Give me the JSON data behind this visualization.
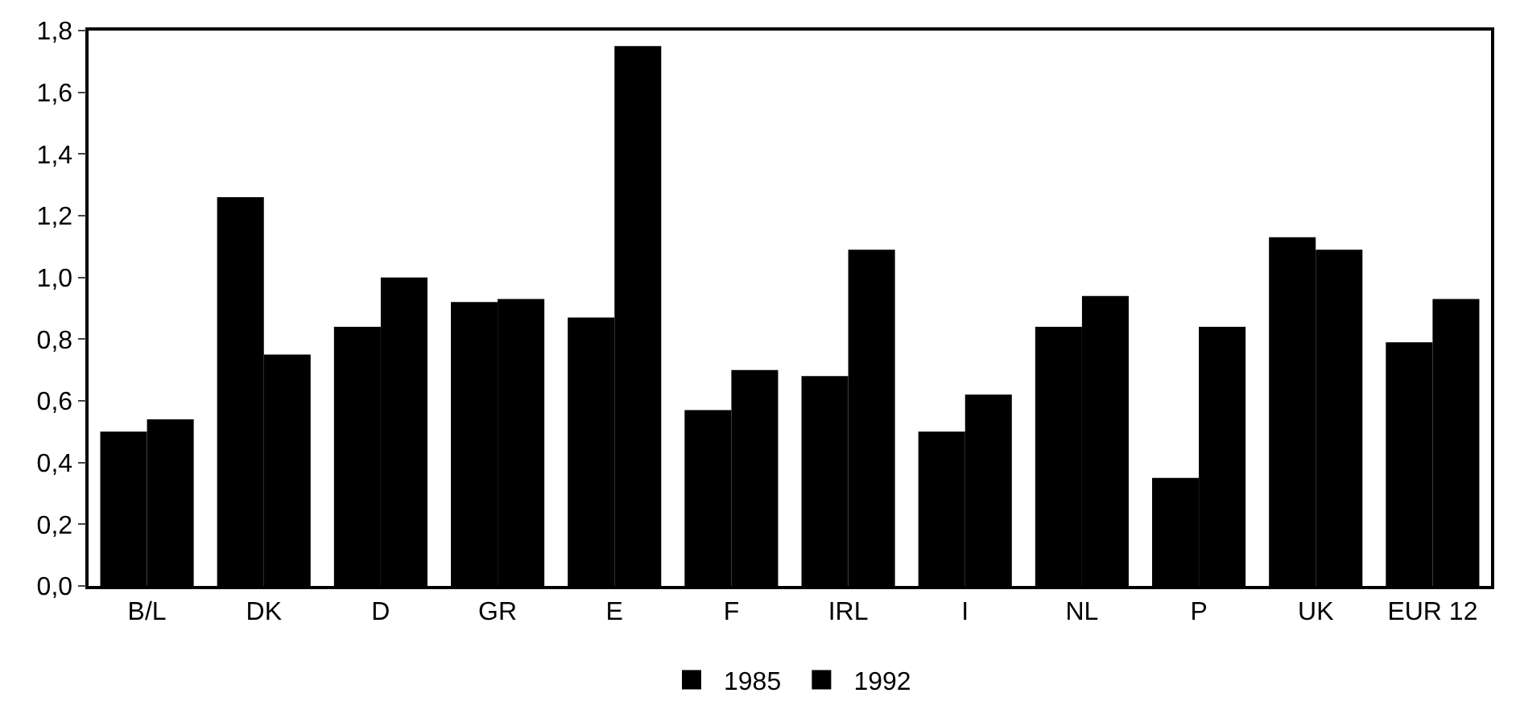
{
  "chart_data": {
    "type": "bar",
    "categories": [
      "B/L",
      "DK",
      "D",
      "GR",
      "E",
      "F",
      "IRL",
      "I",
      "NL",
      "P",
      "UK",
      "EUR 12"
    ],
    "series": [
      {
        "name": "1985",
        "color": "#000000",
        "values": [
          0.5,
          1.26,
          0.84,
          0.92,
          0.87,
          0.57,
          0.68,
          0.5,
          0.84,
          0.35,
          1.13,
          0.79
        ]
      },
      {
        "name": "1992",
        "color": "#000000",
        "values": [
          0.54,
          0.75,
          1.0,
          0.93,
          1.75,
          0.7,
          1.09,
          0.62,
          0.94,
          0.84,
          1.09,
          0.93
        ]
      }
    ],
    "ylim": [
      0,
      1.8
    ],
    "yticks": [
      {
        "value": 0,
        "label": "0,0"
      },
      {
        "value": 0.2,
        "label": "0,2"
      },
      {
        "value": 0.4,
        "label": "0,4"
      },
      {
        "value": 0.6,
        "label": "0,6"
      },
      {
        "value": 0.8,
        "label": "0,8"
      },
      {
        "value": 1.0,
        "label": "1,0"
      },
      {
        "value": 1.2,
        "label": "1,2"
      },
      {
        "value": 1.4,
        "label": "1,4"
      },
      {
        "value": 1.6,
        "label": "1,6"
      },
      {
        "value": 1.8,
        "label": "1,8"
      }
    ],
    "legend": "bottom"
  }
}
